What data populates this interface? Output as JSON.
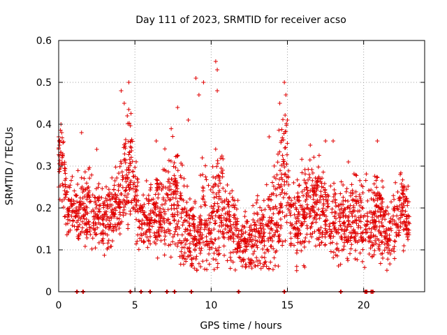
{
  "chart_data": {
    "type": "scatter",
    "title": "Day 111 of 2023, SRMTID for receiver acso",
    "xlabel": "GPS time / hours",
    "ylabel": "SRMTID / TECUs",
    "xlim": [
      0,
      24
    ],
    "ylim": [
      0,
      0.6
    ],
    "xticks": [
      "0",
      "5",
      "10",
      "15",
      "20"
    ],
    "yticks": [
      "0",
      "0.1",
      "0.2",
      "0.3",
      "0.4",
      "0.5",
      "0.6"
    ],
    "grid": true,
    "marker": "+",
    "color": "#e00000",
    "series": [
      {
        "name": "SRMTID",
        "envelope": {
          "x": [
            0,
            0.2,
            0.5,
            1,
            1.5,
            2,
            2.5,
            3,
            3.5,
            4,
            4.3,
            4.6,
            5,
            5.5,
            6,
            6.5,
            7,
            7.5,
            8,
            8.5,
            9,
            9.5,
            10,
            10.4,
            11,
            11.5,
            12,
            12.5,
            13,
            13.5,
            14,
            14.5,
            14.8,
            15.2,
            15.6,
            16,
            16.5,
            17,
            17.5,
            18,
            18.5,
            19,
            19.5,
            20,
            20.5,
            21,
            21.5,
            22,
            22.5,
            23
          ],
          "level": [
            0.28,
            0.32,
            0.22,
            0.19,
            0.2,
            0.2,
            0.18,
            0.17,
            0.19,
            0.22,
            0.25,
            0.3,
            0.22,
            0.17,
            0.18,
            0.18,
            0.2,
            0.22,
            0.18,
            0.14,
            0.13,
            0.16,
            0.15,
            0.22,
            0.17,
            0.15,
            0.12,
            0.12,
            0.13,
            0.14,
            0.17,
            0.22,
            0.3,
            0.19,
            0.16,
            0.2,
            0.22,
            0.22,
            0.2,
            0.17,
            0.16,
            0.17,
            0.18,
            0.17,
            0.16,
            0.2,
            0.13,
            0.16,
            0.2,
            0.18
          ],
          "spread": [
            0.07,
            0.08,
            0.06,
            0.06,
            0.06,
            0.07,
            0.06,
            0.06,
            0.06,
            0.07,
            0.08,
            0.12,
            0.08,
            0.06,
            0.06,
            0.07,
            0.08,
            0.11,
            0.08,
            0.07,
            0.08,
            0.1,
            0.08,
            0.14,
            0.07,
            0.06,
            0.05,
            0.05,
            0.06,
            0.07,
            0.09,
            0.12,
            0.13,
            0.07,
            0.06,
            0.08,
            0.08,
            0.08,
            0.07,
            0.07,
            0.06,
            0.07,
            0.07,
            0.07,
            0.07,
            0.09,
            0.05,
            0.06,
            0.06,
            0.05
          ]
        },
        "peaks": [
          {
            "x": 0.15,
            "y": 0.4
          },
          {
            "x": 0.2,
            "y": 0.38
          },
          {
            "x": 1.5,
            "y": 0.38
          },
          {
            "x": 2.5,
            "y": 0.34
          },
          {
            "x": 4.1,
            "y": 0.48
          },
          {
            "x": 4.3,
            "y": 0.45
          },
          {
            "x": 4.6,
            "y": 0.5
          },
          {
            "x": 4.5,
            "y": 0.42
          },
          {
            "x": 6.4,
            "y": 0.36
          },
          {
            "x": 7.8,
            "y": 0.44
          },
          {
            "x": 8.5,
            "y": 0.41
          },
          {
            "x": 9,
            "y": 0.51
          },
          {
            "x": 9.2,
            "y": 0.47
          },
          {
            "x": 9.5,
            "y": 0.5
          },
          {
            "x": 10.3,
            "y": 0.55
          },
          {
            "x": 10.4,
            "y": 0.53
          },
          {
            "x": 10.4,
            "y": 0.48
          },
          {
            "x": 13.8,
            "y": 0.37
          },
          {
            "x": 14.5,
            "y": 0.45
          },
          {
            "x": 14.8,
            "y": 0.5
          },
          {
            "x": 14.9,
            "y": 0.47
          },
          {
            "x": 15,
            "y": 0.41
          },
          {
            "x": 16.5,
            "y": 0.35
          },
          {
            "x": 17.5,
            "y": 0.36
          },
          {
            "x": 18,
            "y": 0.36
          },
          {
            "x": 19,
            "y": 0.31
          },
          {
            "x": 20.9,
            "y": 0.36
          },
          {
            "x": 22.4,
            "y": 0.28
          }
        ],
        "zero_x": [
          1.2,
          1.6,
          4.7,
          5.4,
          6.0,
          7.1,
          7.6,
          8.7,
          11.8,
          14.8,
          18.5,
          20.1,
          20.2,
          20.5,
          20.6
        ]
      }
    ]
  }
}
